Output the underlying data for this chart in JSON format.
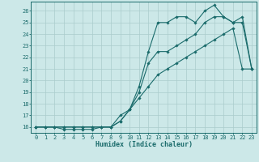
{
  "xlabel": "Humidex (Indice chaleur)",
  "bg_color": "#cce8e8",
  "grid_color": "#aacccc",
  "line_color": "#1a6b6b",
  "xlim": [
    -0.5,
    23.5
  ],
  "ylim": [
    15.5,
    26.8
  ],
  "yticks": [
    16,
    17,
    18,
    19,
    20,
    21,
    22,
    23,
    24,
    25,
    26
  ],
  "xticks": [
    0,
    1,
    2,
    3,
    4,
    5,
    6,
    7,
    8,
    9,
    10,
    11,
    12,
    13,
    14,
    15,
    16,
    17,
    18,
    19,
    20,
    21,
    22,
    23
  ],
  "line1_x": [
    0,
    1,
    2,
    3,
    4,
    5,
    6,
    7,
    8,
    9,
    10,
    11,
    12,
    13,
    14,
    15,
    16,
    17,
    18,
    19,
    20,
    21,
    22,
    23
  ],
  "line1_y": [
    16,
    16,
    16,
    16,
    16,
    16,
    16,
    16,
    16,
    16.5,
    17.5,
    19.5,
    22.5,
    25.0,
    25.0,
    25.5,
    25.5,
    25.0,
    26.0,
    26.5,
    25.5,
    25.0,
    25.0,
    21.0
  ],
  "line2_x": [
    0,
    1,
    2,
    3,
    4,
    5,
    6,
    7,
    8,
    9,
    10,
    11,
    12,
    13,
    14,
    15,
    16,
    17,
    18,
    19,
    20,
    21,
    22,
    23
  ],
  "line2_y": [
    16,
    16,
    16,
    15.8,
    15.8,
    15.8,
    15.8,
    16.0,
    16.0,
    17.0,
    17.5,
    19.0,
    21.5,
    22.5,
    22.5,
    23.0,
    23.5,
    24.0,
    25.0,
    25.5,
    25.5,
    25.0,
    25.5,
    21.0
  ],
  "line3_x": [
    0,
    1,
    2,
    3,
    4,
    5,
    6,
    7,
    8,
    9,
    10,
    11,
    12,
    13,
    14,
    15,
    16,
    17,
    18,
    19,
    20,
    21,
    22,
    23
  ],
  "line3_y": [
    16,
    16,
    16,
    16,
    16,
    16,
    16,
    16,
    16,
    16.5,
    17.5,
    18.5,
    19.5,
    20.5,
    21.0,
    21.5,
    22.0,
    22.5,
    23.0,
    23.5,
    24.0,
    24.5,
    21.0,
    21.0
  ],
  "tick_fontsize": 5.0,
  "xlabel_fontsize": 6.0,
  "markersize": 1.8,
  "linewidth": 0.8
}
